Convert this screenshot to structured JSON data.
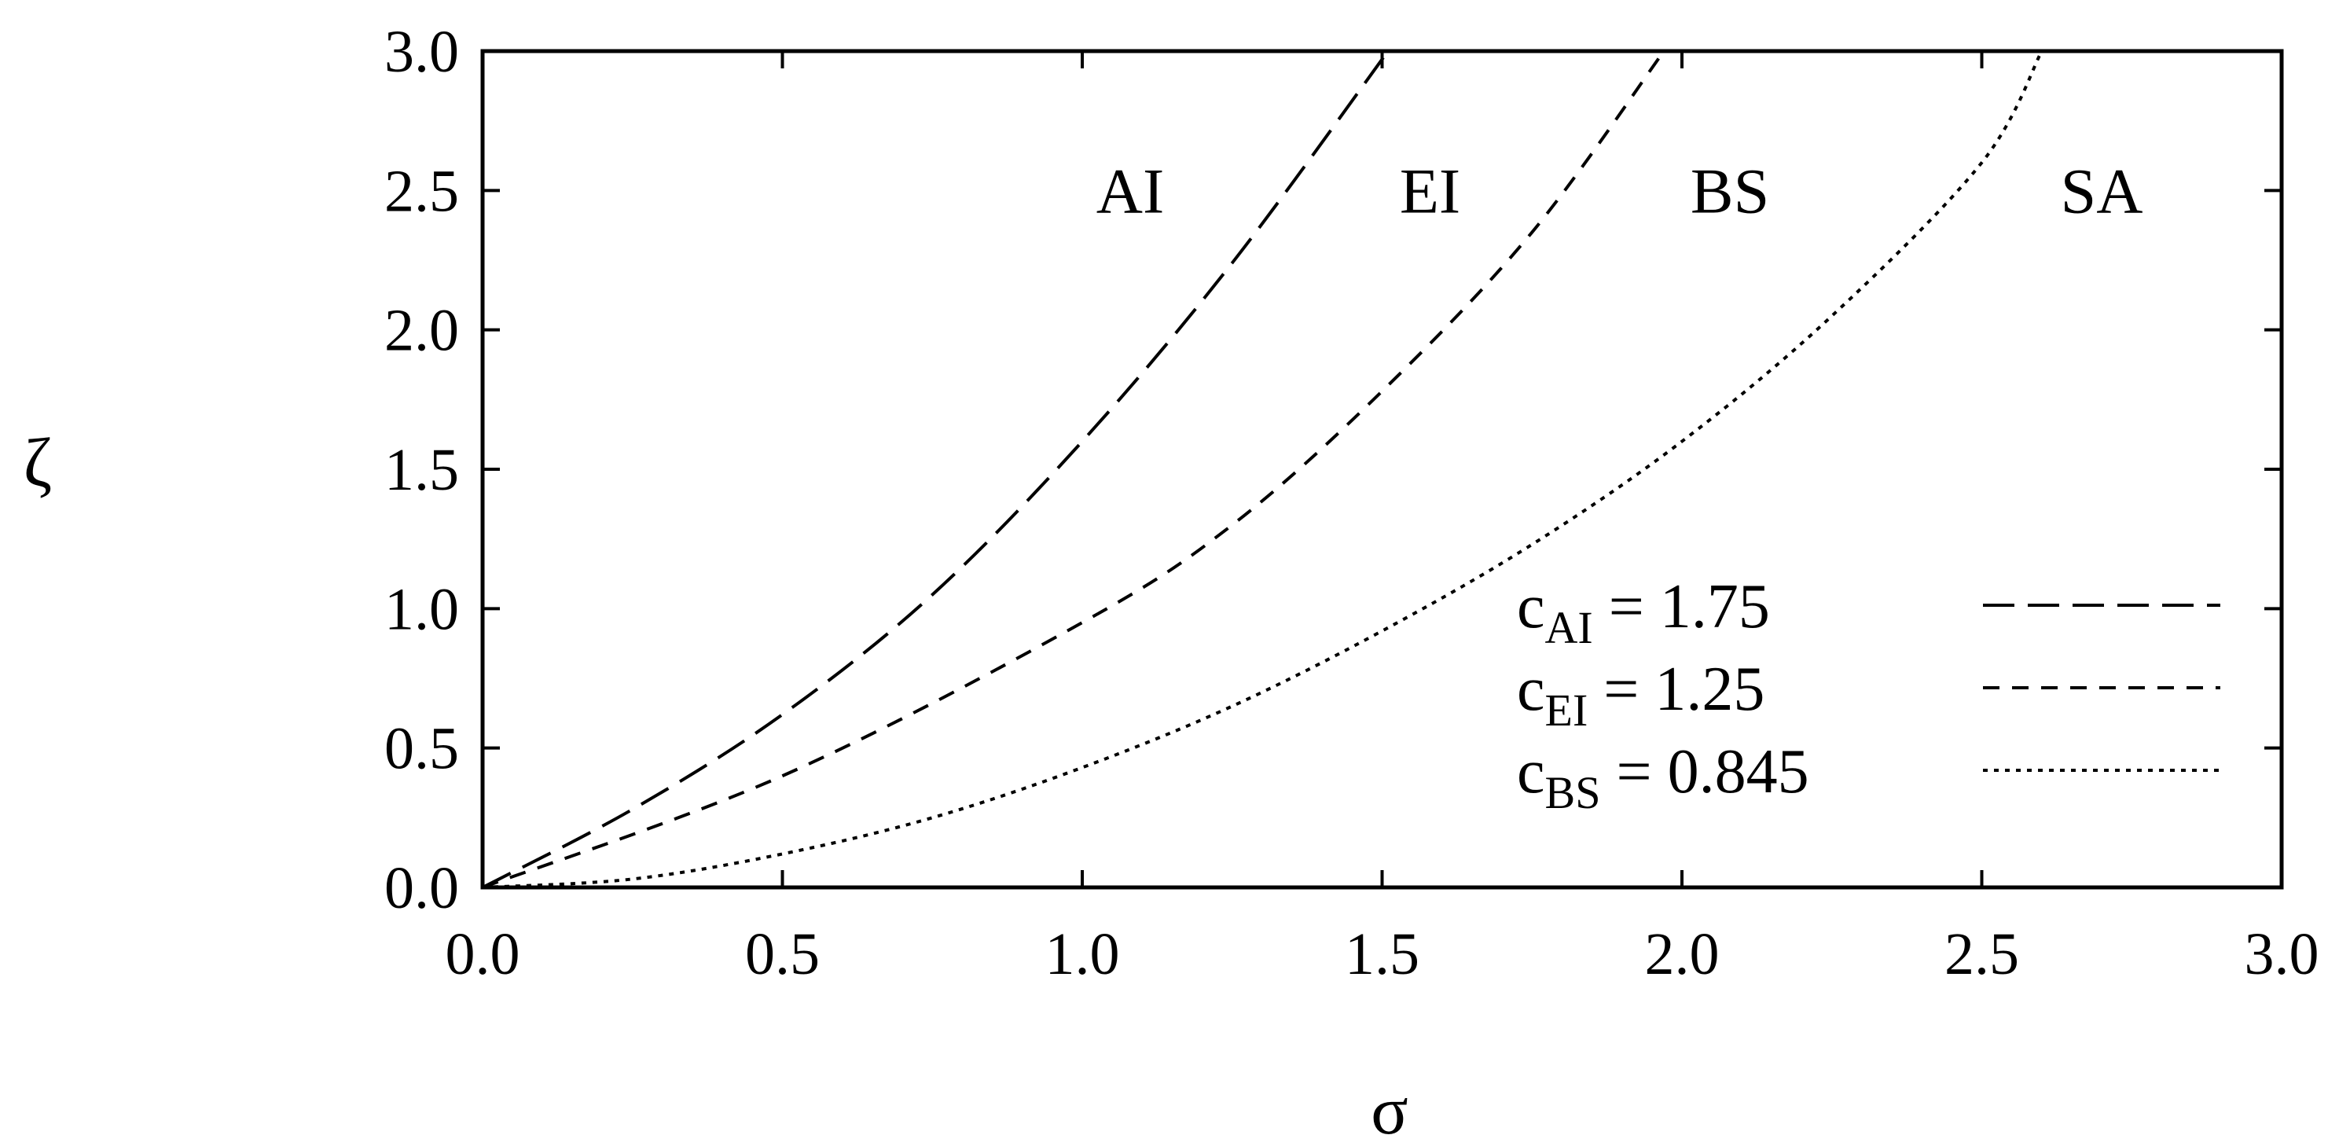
{
  "chart_data": {
    "type": "line",
    "xlabel": "σ",
    "ylabel": "ζ",
    "xlim": [
      0,
      3.0
    ],
    "ylim": [
      0,
      3.0
    ],
    "x_ticks": [
      "0.0",
      "0.5",
      "1.0",
      "1.5",
      "2.0",
      "2.5",
      "3.0"
    ],
    "y_ticks": [
      "0.0",
      "0.5",
      "1.0",
      "1.5",
      "2.0",
      "2.5",
      "3.0"
    ],
    "grid": false,
    "legend_position": "bottom-right",
    "series": [
      {
        "key": "AI",
        "legend": {
          "base": "c",
          "sub": "AI",
          "rest": " =   1.75"
        },
        "dash": "long-dash",
        "x": [
          0,
          0.25,
          0.5,
          0.75,
          1.0,
          1.25,
          1.51
        ],
        "y": [
          0,
          0.28,
          0.62,
          1.05,
          1.6,
          2.24,
          3.0
        ]
      },
      {
        "key": "EI",
        "legend": {
          "base": "c",
          "sub": "EI",
          "rest": " =   1.25"
        },
        "dash": "short-dash",
        "x": [
          0,
          0.5,
          1.0,
          1.25,
          1.5,
          1.75,
          1.97
        ],
        "y": [
          0,
          0.4,
          0.95,
          1.3,
          1.78,
          2.35,
          3.0
        ]
      },
      {
        "key": "BS",
        "legend": {
          "base": "c",
          "sub": "BS",
          "rest": " = 0.845"
        },
        "dash": "dotted",
        "x": [
          0,
          0.25,
          0.5,
          0.75,
          1.0,
          1.25,
          1.5,
          1.75,
          2.0,
          2.25,
          2.5,
          2.6
        ],
        "y": [
          0,
          0.03,
          0.12,
          0.25,
          0.43,
          0.65,
          0.92,
          1.23,
          1.6,
          2.05,
          2.6,
          3.0
        ]
      }
    ],
    "region_labels": [
      {
        "text": "AI",
        "x": 1.08,
        "y": 2.5
      },
      {
        "text": "EI",
        "x": 1.58,
        "y": 2.5
      },
      {
        "text": "BS",
        "x": 2.08,
        "y": 2.5
      },
      {
        "text": "SA",
        "x": 2.7,
        "y": 2.5
      }
    ]
  }
}
